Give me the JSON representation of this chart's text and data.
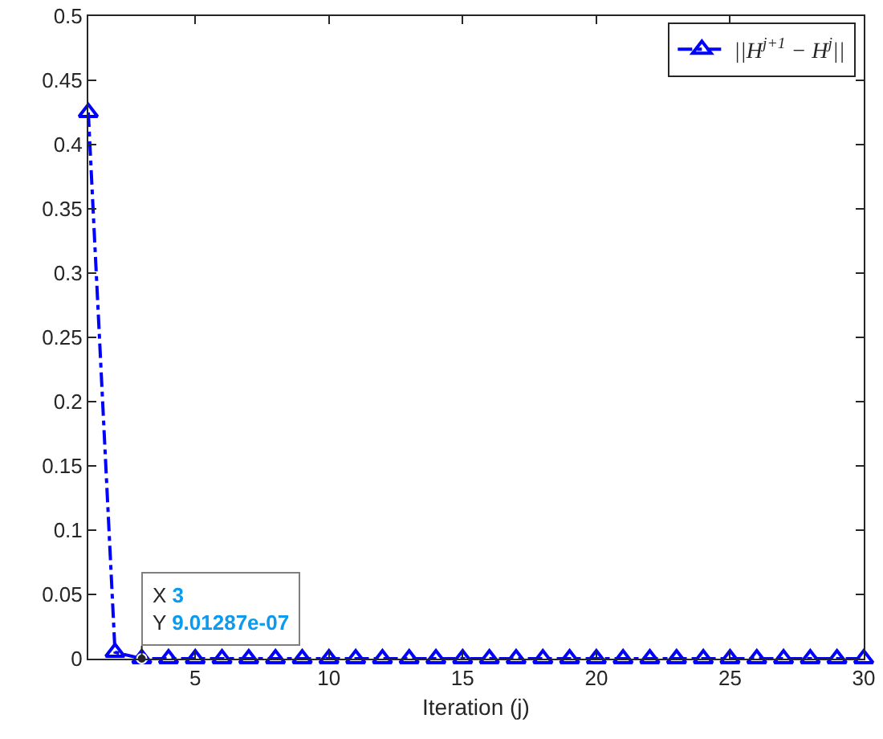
{
  "chart_data": {
    "type": "line",
    "xlabel": "Iteration (j)",
    "x": [
      1,
      2,
      3,
      4,
      5,
      6,
      7,
      8,
      9,
      10,
      11,
      12,
      13,
      14,
      15,
      16,
      17,
      18,
      19,
      20,
      21,
      22,
      23,
      24,
      25,
      26,
      27,
      28,
      29,
      30
    ],
    "series": [
      {
        "name": "||H$^{j+1}$ − H$^{j}$||",
        "color": "#0000ff",
        "values": [
          0.425,
          0.005,
          9.01287e-07,
          0,
          0,
          0,
          0,
          0,
          0,
          0,
          0,
          0,
          0,
          0,
          0,
          0,
          0,
          0,
          0,
          0,
          0,
          0,
          0,
          0,
          0,
          0,
          0,
          0,
          0,
          0
        ]
      }
    ],
    "xlim": [
      1,
      30
    ],
    "xticks": [
      5,
      10,
      15,
      20,
      25,
      30
    ],
    "ylim": [
      0,
      0.5
    ],
    "yticks": [
      0,
      0.05,
      0.1,
      0.15,
      0.2,
      0.25,
      0.3,
      0.35,
      0.4,
      0.45,
      0.5
    ],
    "annotations": [
      {
        "text": "X 3\nY 9.01287e-07",
        "x": 3,
        "y": 9.01287e-07
      }
    ],
    "legend": "top right",
    "marker": "triangle",
    "line_style": "dashed"
  }
}
